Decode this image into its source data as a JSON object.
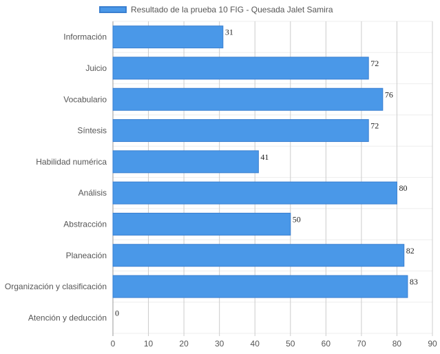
{
  "chart_data": {
    "type": "bar",
    "orientation": "horizontal",
    "categories": [
      "Información",
      "Juicio",
      "Vocabulario",
      "Síntesis",
      "Habilidad numérica",
      "Análisis",
      "Abstracción",
      "Planeación",
      "Organización y clasificación",
      "Atención y deducción"
    ],
    "series": [
      {
        "name": "Resultado de la prueba 10 FIG - Quesada Jalet Samira",
        "values": [
          31,
          72,
          76,
          72,
          41,
          80,
          50,
          82,
          83,
          0
        ]
      }
    ],
    "xlim": [
      0,
      90
    ],
    "xticks": [
      0,
      10,
      20,
      30,
      40,
      50,
      60,
      70,
      80,
      90
    ],
    "grid": true,
    "legend_position": "top",
    "data_labels": true,
    "colors": {
      "bar_fill": "#4a98e8",
      "bar_border": "#3a7fd0",
      "grid": "#dddddd",
      "axis_text": "#555555"
    }
  }
}
